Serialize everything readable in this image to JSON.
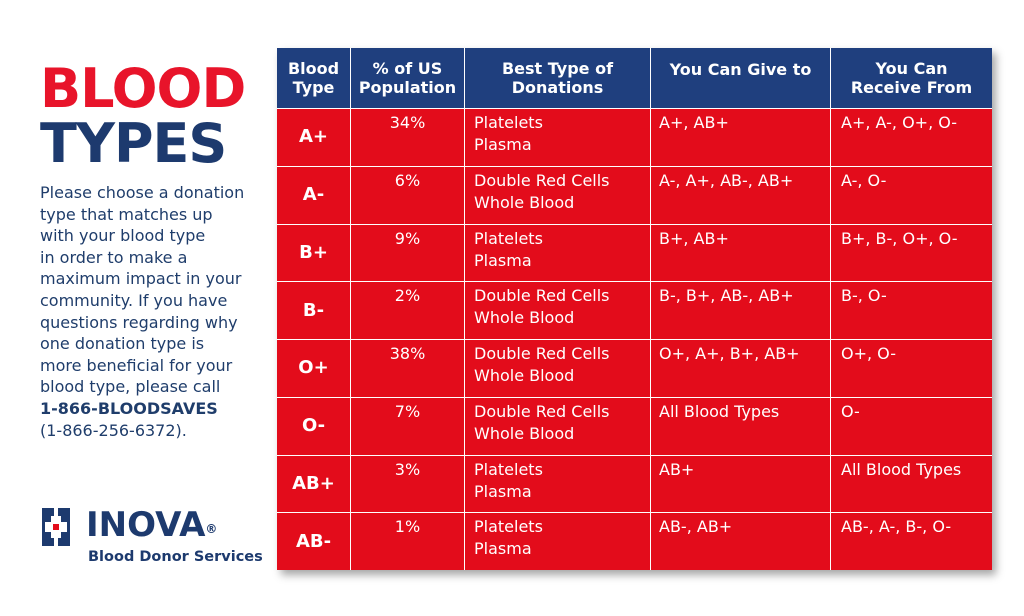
{
  "title": {
    "line1": "BLOOD",
    "line2": "TYPES"
  },
  "description": {
    "lines": [
      "Please choose a donation",
      "type that matches up",
      "with your blood type",
      "in order to make a",
      "maximum impact in your",
      "community.  If you have",
      "questions regarding why",
      "one donation type is",
      "more beneficial for your",
      "blood type, please call"
    ],
    "phone": "1-866-BLOODSAVES",
    "phone_numeric": "(1-866-256-6372)."
  },
  "logo": {
    "name": "INOVA",
    "registered": "®",
    "subtitle": "Blood Donor Services",
    "icon": "inova-cross-icon"
  },
  "colors": {
    "red": "#e30c1b",
    "navy": "#1f3f7e",
    "title_red": "#e8142a"
  },
  "table": {
    "headers": [
      {
        "line1": "Blood",
        "line2": "Type"
      },
      {
        "line1": "% of US",
        "line2": "Population"
      },
      {
        "line1": "Best Type of",
        "line2": "Donations"
      },
      {
        "line1": "You Can Give to",
        "line2": ""
      },
      {
        "line1": "You Can",
        "line2": "Receive From"
      }
    ],
    "rows": [
      {
        "type": "A+",
        "pct": "34%",
        "don1": "Platelets",
        "don2": "Plasma",
        "give": "A+, AB+",
        "recv": "A+, A-, O+, O-"
      },
      {
        "type": "A-",
        "pct": "6%",
        "don1": "Double Red Cells",
        "don2": "Whole Blood",
        "give": "A-, A+, AB-, AB+",
        "recv": "A-, O-"
      },
      {
        "type": "B+",
        "pct": "9%",
        "don1": "Platelets",
        "don2": "Plasma",
        "give": "B+, AB+",
        "recv": "B+, B-, O+, O-"
      },
      {
        "type": "B-",
        "pct": "2%",
        "don1": "Double Red Cells",
        "don2": "Whole Blood",
        "give": "B-, B+, AB-, AB+",
        "recv": "B-, O-"
      },
      {
        "type": "O+",
        "pct": "38%",
        "don1": "Double Red Cells",
        "don2": "Whole Blood",
        "give": "O+, A+, B+, AB+",
        "recv": "O+, O-"
      },
      {
        "type": "O-",
        "pct": "7%",
        "don1": "Double Red Cells",
        "don2": "Whole Blood",
        "give": "All Blood Types",
        "recv": "O-"
      },
      {
        "type": "AB+",
        "pct": "3%",
        "don1": "Platelets",
        "don2": "Plasma",
        "give": "AB+",
        "recv": "All Blood Types"
      },
      {
        "type": "AB-",
        "pct": "1%",
        "don1": "Platelets",
        "don2": "Plasma",
        "give": "AB-, AB+",
        "recv": "AB-, A-, B-, O-"
      }
    ]
  }
}
